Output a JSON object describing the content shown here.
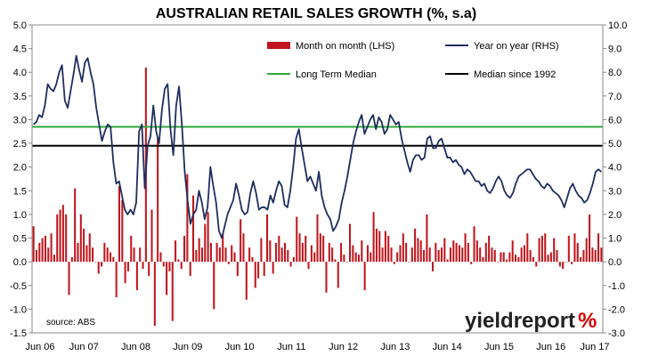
{
  "chart_data": {
    "type": "bar+line",
    "title": "AUSTRALIAN RETAIL SALES GROWTH (%, s.a)",
    "x_tick_labels": [
      "Jun 06",
      "Jun 07",
      "Jun 08",
      "Jun 09",
      "Jun 10",
      "Jun 11",
      "Jun 12",
      "Jun 13",
      "Jun 14",
      "Jun 15",
      "Jun 16",
      "Jun 17"
    ],
    "y_left": {
      "min": -1.5,
      "max": 5.0,
      "step": 0.5,
      "tick_labels": [
        "5.0",
        "4.5",
        "4.0",
        "3.5",
        "3.0",
        "2.5",
        "2.0",
        "1.5",
        "1.0",
        "0.5",
        "0.0",
        "-0.5",
        "-1.0",
        "-1.5"
      ]
    },
    "y_right": {
      "min": -3.0,
      "max": 10.0,
      "step": 1.0,
      "tick_labels": [
        "10.0",
        "9.0",
        "8.0",
        "7.0",
        "6.0",
        "5.0",
        "4.0",
        "3.0",
        "2.0",
        "1.0",
        "0.0",
        "-1.0",
        "-2.0",
        "-3.0"
      ]
    },
    "x_start": "Jun 2006",
    "x_end": "Jun 2017",
    "grid": false,
    "series": [
      {
        "name": "Month on month (LHS)",
        "kind": "bar",
        "axis": "left",
        "color": "#c0171e",
        "values": [
          0.75,
          0.25,
          0.4,
          0.5,
          0.55,
          0.3,
          0.6,
          0.15,
          1.0,
          1.1,
          1.2,
          1.0,
          -0.7,
          0.1,
          1.55,
          0.4,
          1.0,
          0.7,
          0.35,
          0.6,
          0.3,
          0.0,
          -0.25,
          -0.1,
          0.4,
          0.3,
          0.2,
          0.1,
          -0.75,
          1.6,
          1.3,
          -0.45,
          -0.2,
          0.55,
          0.3,
          -0.6,
          0.3,
          -0.15,
          4.1,
          -0.3,
          1.1,
          -1.35,
          2.6,
          0.2,
          -0.1,
          -0.7,
          -0.2,
          -1.25,
          0.45,
          0.05,
          -0.15,
          0.55,
          1.85,
          -0.3,
          1.4,
          0.25,
          0.5,
          0.3,
          0.8,
          1.05,
          0.4,
          -1.0,
          0.4,
          0.3,
          0.6,
          0.3,
          -0.05,
          0.35,
          0.2,
          -0.3,
          0.9,
          0.6,
          -0.8,
          0.3,
          0.1,
          -0.55,
          -0.35,
          0.5,
          -0.3,
          1.0,
          0.45,
          -0.25,
          0.4,
          0.55,
          0.3,
          0.4,
          0.25,
          -0.1,
          0.1,
          0.95,
          0.6,
          0.4,
          0.55,
          -0.15,
          0.35,
          0.2,
          1.0,
          0.6,
          0.55,
          -0.65,
          0.4,
          0.3,
          0.05,
          -0.55,
          0.4,
          0.15,
          0.0,
          0.8,
          0.35,
          0.2,
          0.15,
          0.45,
          -0.6,
          0.35,
          0.2,
          1.05,
          0.7,
          0.65,
          0.3,
          0.65,
          0.55,
          0.3,
          -0.05,
          0.2,
          0.35,
          0.6,
          0.4,
          0.0,
          0.3,
          0.7,
          0.5,
          0.45,
          0.25,
          1.0,
          0.3,
          -0.2,
          0.4,
          0.25,
          0.3,
          0.5,
          0.05,
          0.3,
          0.45,
          0.4,
          0.35,
          0.3,
          0.6,
          0.4,
          -0.05,
          0.75,
          0.45,
          0.3,
          0.1,
          0.4,
          0.55,
          0.3,
          0.25,
          0.0,
          0.2,
          0.2,
          0.05,
          0.2,
          0.45,
          0.15,
          0.1,
          0.3,
          0.35,
          0.6,
          0.25,
          0.1,
          -0.1,
          0.5,
          0.55,
          0.6,
          0.15,
          0.2,
          0.5,
          0.25,
          -0.1,
          -0.15,
          0.0,
          0.55,
          -0.05,
          0.6,
          0.4,
          0.1,
          0.25,
          0.5,
          1.0,
          0.3,
          0.25,
          0.6,
          0.3
        ]
      },
      {
        "name": "Year on year (RHS)",
        "kind": "line",
        "axis": "right",
        "color": "#1f2d5e",
        "values": [
          5.8,
          5.9,
          6.2,
          6.1,
          6.6,
          7.5,
          7.3,
          7.2,
          7.5,
          8.0,
          8.3,
          6.8,
          6.5,
          7.2,
          7.9,
          8.7,
          8.1,
          7.6,
          8.4,
          8.6,
          8.0,
          7.5,
          6.5,
          5.8,
          5.1,
          5.5,
          5.8,
          5.7,
          4.2,
          3.3,
          3.4,
          2.8,
          2.2,
          2.0,
          2.2,
          2.0,
          2.5,
          5.5,
          5.8,
          3.1,
          4.9,
          5.3,
          6.6,
          5.5,
          5.0,
          6.4,
          7.3,
          7.5,
          5.6,
          4.5,
          6.6,
          7.4,
          5.8,
          3.8,
          2.6,
          1.6,
          2.0,
          2.2,
          3.0,
          2.5,
          1.8,
          2.3,
          4.0,
          3.2,
          2.5,
          1.3,
          1.0,
          1.5,
          2.0,
          2.3,
          2.6,
          3.3,
          2.8,
          2.2,
          2.0,
          2.1,
          2.9,
          3.4,
          2.9,
          2.2,
          2.3,
          2.3,
          2.2,
          2.8,
          2.5,
          3.0,
          3.4,
          3.2,
          2.4,
          2.3,
          3.0,
          4.0,
          5.2,
          5.6,
          4.8,
          4.1,
          3.4,
          3.6,
          3.3,
          3.0,
          3.8,
          2.8,
          2.3,
          2.0,
          1.8,
          1.3,
          1.5,
          1.8,
          2.5,
          3.0,
          3.6,
          4.3,
          5.0,
          5.5,
          5.9,
          6.2,
          5.4,
          5.7,
          6.0,
          6.2,
          5.6,
          6.1,
          5.9,
          5.4,
          5.6,
          6.2,
          6.0,
          5.8,
          5.9,
          5.2,
          4.7,
          4.2,
          3.8,
          4.3,
          4.5,
          4.5,
          4.3,
          4.4,
          5.2,
          5.3,
          4.8,
          4.8,
          5.1,
          5.2,
          4.8,
          4.4,
          4.4,
          4.2,
          4.3,
          4.1,
          4.0,
          3.7,
          3.9,
          3.8,
          3.6,
          3.4,
          3.4,
          3.2,
          3.3,
          3.0,
          2.9,
          3.1,
          3.4,
          3.6,
          3.4,
          3.0,
          2.8,
          2.7,
          2.9,
          3.3,
          3.6,
          3.7,
          3.8,
          3.9,
          3.9,
          3.7,
          3.5,
          3.4,
          3.2,
          3.1,
          3.3,
          3.2,
          3.0,
          2.9,
          2.8,
          2.6,
          2.3,
          2.7,
          3.1,
          3.3,
          3.0,
          2.8,
          2.7,
          2.5,
          2.6,
          2.9,
          3.3,
          3.8,
          3.9,
          3.8
        ]
      },
      {
        "name": "Long Term Median",
        "kind": "hline",
        "axis": "left",
        "color": "#2eaa3a",
        "value": 2.85
      },
      {
        "name": "Median since 1992",
        "kind": "hline",
        "axis": "left",
        "color": "#000000",
        "value": 2.45
      }
    ],
    "legend_position": "top"
  },
  "source_note": "source: ABS",
  "brand": {
    "part1": "yieldreport",
    "part2": "%"
  }
}
